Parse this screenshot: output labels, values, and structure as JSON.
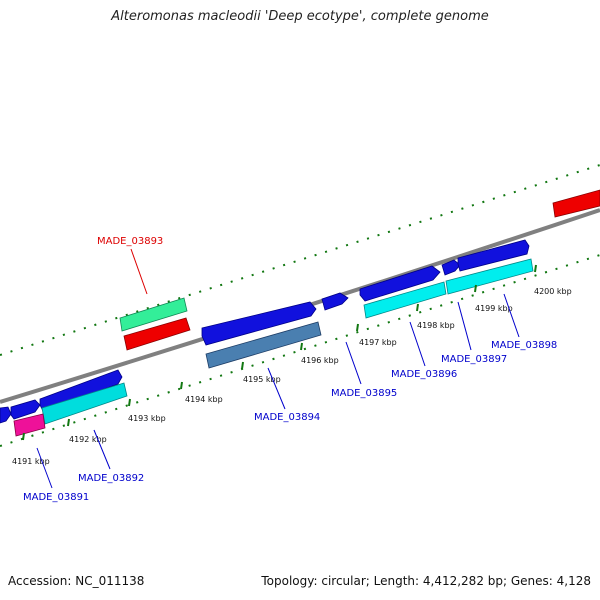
{
  "title": "Alteromonas macleodii 'Deep ecotype', complete genome",
  "footer": {
    "accession": "Accession: NC_011138",
    "summary": "Topology: circular; Length: 4,412,282 bp; Genes: 4,128"
  },
  "colors": {
    "backbone": "#808080",
    "tick": "#117711",
    "forward_gene": "#0000dd",
    "label_default": "#0000cc",
    "label_highlight": "#dd0000",
    "cyan_feature": "#00eeee",
    "steelblue_feature": "#4a7fb0",
    "red_feature": "#ee0000",
    "green_feature": "#33ee99",
    "pink_feature": "#ee1199"
  },
  "ticks": [
    "4191 kbp",
    "4192 kbp",
    "4193 kbp",
    "4194 kbp",
    "4195 kbp",
    "4196 kbp",
    "4197 kbp",
    "4198 kbp",
    "4199 kbp",
    "4200 kbp"
  ],
  "genes": [
    {
      "name": "MADE_03891",
      "color": "#0000cc"
    },
    {
      "name": "MADE_03892",
      "color": "#0000cc"
    },
    {
      "name": "MADE_03893",
      "color": "#dd0000"
    },
    {
      "name": "MADE_03894",
      "color": "#0000cc"
    },
    {
      "name": "MADE_03895",
      "color": "#0000cc"
    },
    {
      "name": "MADE_03896",
      "color": "#0000cc"
    },
    {
      "name": "MADE_03897",
      "color": "#0000cc"
    },
    {
      "name": "MADE_03898",
      "color": "#0000cc"
    }
  ]
}
